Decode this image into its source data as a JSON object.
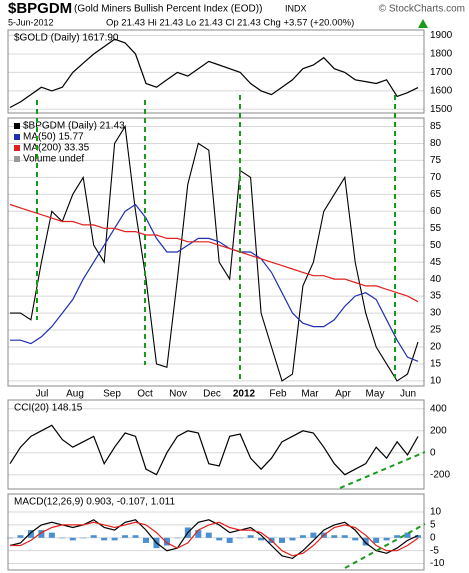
{
  "header": {
    "symbol": "$BPGDM",
    "name": "(Gold Miners Bullish Percent Index (EOD))",
    "exchange": "INDX",
    "credit": "© StockCharts.com",
    "date": "5-Jun-2012",
    "quote": "Op 21.43 Hi 21.43 Lo 21.43 Cl 21.43 Chg +3.57 (+20.00%)"
  },
  "time_axis": {
    "labels": [
      "Jul",
      "Aug",
      "Sep",
      "Oct",
      "Nov",
      "Dec",
      "2012",
      "Feb",
      "Mar",
      "Apr",
      "May",
      "Jun"
    ]
  },
  "chart_data": [
    {
      "type": "line",
      "label": "$GOLD (Daily) 1617.90",
      "ylim": [
        1480,
        1930
      ],
      "yticks": [
        1500,
        1600,
        1700,
        1800,
        1900
      ],
      "grid": true,
      "series": [
        {
          "color": "#000000",
          "values": [
            1510,
            1540,
            1580,
            1620,
            1600,
            1620,
            1700,
            1750,
            1800,
            1840,
            1880,
            1860,
            1800,
            1640,
            1620,
            1660,
            1700,
            1680,
            1720,
            1760,
            1740,
            1720,
            1700,
            1640,
            1600,
            1580,
            1620,
            1660,
            1720,
            1740,
            1780,
            1720,
            1700,
            1660,
            1650,
            1640,
            1660,
            1570,
            1590,
            1617.9
          ]
        }
      ]
    },
    {
      "type": "line",
      "ylim": [
        8.5,
        87.5
      ],
      "yticks": [
        10,
        15,
        20,
        25,
        30,
        35,
        40,
        45,
        50,
        55,
        60,
        65,
        70,
        75,
        80,
        85
      ],
      "grid": true,
      "legend_extra": "Volume undef",
      "series": [
        {
          "name": "$BPGDM (Daily) 21.43",
          "color": "#000000",
          "values": [
            30,
            30,
            28,
            45,
            60,
            57,
            65,
            70,
            50,
            45,
            80,
            85,
            60,
            40,
            15,
            14,
            40,
            68,
            80,
            78,
            45,
            40,
            72,
            70,
            30,
            20,
            10,
            12,
            38,
            45,
            60,
            65,
            70,
            45,
            30,
            20,
            15,
            10,
            12,
            21.43
          ]
        },
        {
          "name": "MA(50) 15.77",
          "color": "#1f2fb0",
          "values": [
            22,
            22,
            21,
            23,
            26,
            30,
            34,
            40,
            45,
            50,
            55,
            60,
            62,
            58,
            52,
            48,
            48,
            50,
            52,
            52,
            51,
            49,
            48,
            48,
            46,
            42,
            36,
            30,
            27,
            26,
            26,
            28,
            32,
            35,
            36,
            34,
            28,
            22,
            17,
            15.77
          ]
        },
        {
          "name": "MA(200) 33.35",
          "color": "#e0201c",
          "values": [
            62,
            61,
            60,
            59,
            58,
            57,
            57,
            56,
            56,
            55,
            55,
            54,
            54,
            53,
            53,
            52,
            52,
            51,
            51,
            51,
            50,
            49,
            48,
            47,
            46,
            45,
            44,
            43,
            42,
            41,
            41,
            40,
            40,
            39,
            38,
            38,
            37,
            36,
            35,
            33.35
          ]
        }
      ]
    },
    {
      "type": "line",
      "label": "CCI(20) 148.15",
      "ylim": [
        -330,
        480
      ],
      "yticks": [
        -200,
        0,
        200,
        400
      ],
      "grid": true,
      "series": [
        {
          "color": "#000000",
          "values": [
            -100,
            50,
            150,
            200,
            250,
            120,
            50,
            100,
            150,
            -100,
            50,
            180,
            150,
            -150,
            -200,
            0,
            150,
            200,
            180,
            -100,
            -120,
            150,
            170,
            -50,
            -150,
            -50,
            100,
            150,
            200,
            180,
            50,
            -100,
            -200,
            -150,
            -100,
            50,
            -50,
            100,
            -20,
            148.15
          ]
        }
      ]
    },
    {
      "type": "line",
      "label": "MACD(12,26,9) 0.903, -0.107, 1.011",
      "ylim": [
        -12.5,
        17
      ],
      "yticks": [
        -10,
        -5,
        0,
        5,
        10
      ],
      "grid": true,
      "series": [
        {
          "type": "bar",
          "color": "#4a8fd0",
          "values": [
            0,
            1,
            3,
            3,
            2,
            0,
            -1,
            0,
            1,
            -1,
            -1,
            1,
            1,
            -2,
            -4,
            -3,
            0,
            4,
            3,
            2,
            -1,
            -2,
            0,
            1,
            -1,
            -2,
            -2,
            -1,
            1,
            2,
            2,
            1,
            1,
            -1,
            -3,
            -2,
            -1,
            1,
            2,
            1.011
          ]
        },
        {
          "color": "#000000",
          "values": [
            -3,
            -2,
            2,
            5,
            6,
            5,
            4,
            5,
            7,
            4,
            3,
            6,
            7,
            3,
            -2,
            -5,
            -4,
            2,
            6,
            7,
            5,
            2,
            3,
            4,
            1,
            -3,
            -7,
            -8,
            -5,
            -1,
            3,
            5,
            6,
            3,
            -2,
            -5,
            -6,
            -4,
            -1,
            0.903
          ]
        },
        {
          "color": "#e0201c",
          "values": [
            -3,
            -3,
            -1,
            2,
            4,
            5,
            5,
            5,
            6,
            5,
            4,
            5,
            6,
            5,
            2,
            -2,
            -4,
            -2,
            3,
            5,
            6,
            4,
            3,
            3,
            2,
            -1,
            -5,
            -7,
            -6,
            -3,
            1,
            4,
            5,
            4,
            1,
            -3,
            -5,
            -5,
            -3,
            -0.107
          ]
        }
      ]
    }
  ]
}
